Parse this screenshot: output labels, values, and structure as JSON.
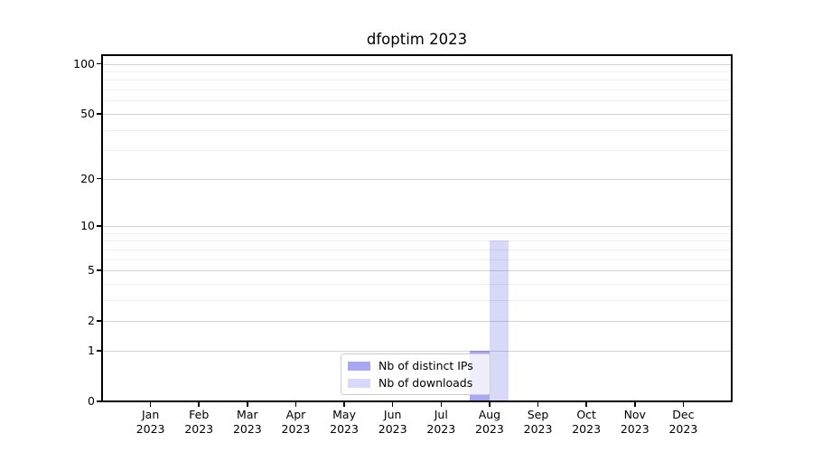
{
  "chart_data": {
    "type": "bar",
    "title": "dfoptim 2023",
    "categories": [
      "Jan",
      "Feb",
      "Mar",
      "Apr",
      "May",
      "Jun",
      "Jul",
      "Aug",
      "Sep",
      "Oct",
      "Nov",
      "Dec"
    ],
    "year_label": "2023",
    "series": [
      {
        "name": "Nb of distinct IPs",
        "color": "#a8a8f0",
        "values": [
          0,
          0,
          0,
          0,
          0,
          0,
          0,
          1,
          0,
          0,
          0,
          0
        ]
      },
      {
        "name": "Nb of downloads",
        "color": "#d8d8f8",
        "values": [
          0,
          0,
          0,
          0,
          0,
          0,
          0,
          8,
          0,
          0,
          0,
          0
        ]
      }
    ],
    "y_axis": {
      "scale": "log1p",
      "min": 0,
      "max": 115,
      "major_ticks": [
        0,
        1,
        2,
        5,
        10,
        20,
        50,
        100
      ],
      "minor_ticks": [
        3,
        4,
        6,
        7,
        8,
        9,
        30,
        40,
        60,
        70,
        80,
        90
      ]
    },
    "grid": "horizontal",
    "legend_position": "inside-bottom-center",
    "colors": {
      "spine": "#000000",
      "grid_major": "#d4d4d4",
      "grid_minor": "#efefef"
    }
  }
}
